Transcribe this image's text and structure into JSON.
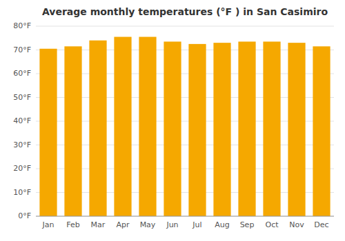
{
  "chart_data": {
    "type": "bar",
    "title": "Average monthly temperatures (°F ) in San Casimiro",
    "categories": [
      "Jan",
      "Feb",
      "Mar",
      "Apr",
      "May",
      "Jun",
      "Jul",
      "Aug",
      "Sep",
      "Oct",
      "Nov",
      "Dec"
    ],
    "values": [
      70.5,
      71.5,
      74.0,
      75.5,
      75.5,
      73.5,
      72.5,
      73.0,
      73.5,
      73.5,
      73.0,
      71.5
    ],
    "color": "#F5A800",
    "ylim": [
      0,
      80
    ],
    "yticks": [
      {
        "value": 0,
        "label": "0°F"
      },
      {
        "value": 10,
        "label": "10°F"
      },
      {
        "value": 20,
        "label": "20°F"
      },
      {
        "value": 30,
        "label": "30°F"
      },
      {
        "value": 40,
        "label": "40°F"
      },
      {
        "value": 50,
        "label": "50°F"
      },
      {
        "value": 60,
        "label": "60°F"
      },
      {
        "value": 70,
        "label": "70°F"
      },
      {
        "value": 80,
        "label": "80°F"
      }
    ],
    "grid": true
  }
}
